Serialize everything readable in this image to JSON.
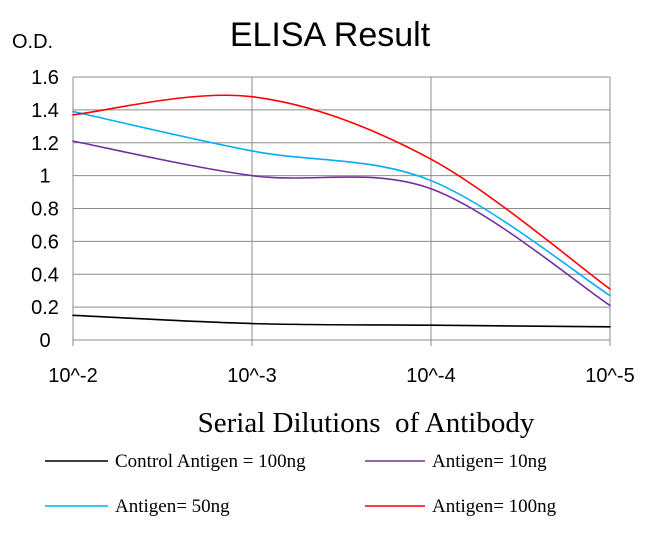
{
  "chart_data": {
    "type": "line",
    "title": "ELISA Result",
    "ylabel": "O.D.",
    "xlabel": "Serial Dilutions  of Antibody",
    "x_categories": [
      "10^-2",
      "10^-3",
      "10^-4",
      "10^-5"
    ],
    "y_ticks": [
      "0",
      "0.2",
      "0.4",
      "0.6",
      "0.8",
      "1",
      "1.2",
      "1.4",
      "1.6"
    ],
    "ylim": [
      0,
      1.6
    ],
    "grid": {
      "horizontal": true,
      "vertical": true
    },
    "legend_placement": "bottom",
    "series": [
      {
        "name": "Control Antigen = 100ng",
        "color": "#000000",
        "values": [
          0.15,
          0.1,
          0.09,
          0.08
        ]
      },
      {
        "name": "Antigen= 10ng",
        "color": "#7030a0",
        "values": [
          1.21,
          1.0,
          0.92,
          0.21
        ]
      },
      {
        "name": "Antigen= 50ng",
        "color": "#00b0f0",
        "values": [
          1.39,
          1.15,
          0.97,
          0.27
        ]
      },
      {
        "name": "Antigen= 100ng",
        "color": "#ff0000",
        "values": [
          1.37,
          1.48,
          1.1,
          0.31
        ]
      }
    ]
  }
}
